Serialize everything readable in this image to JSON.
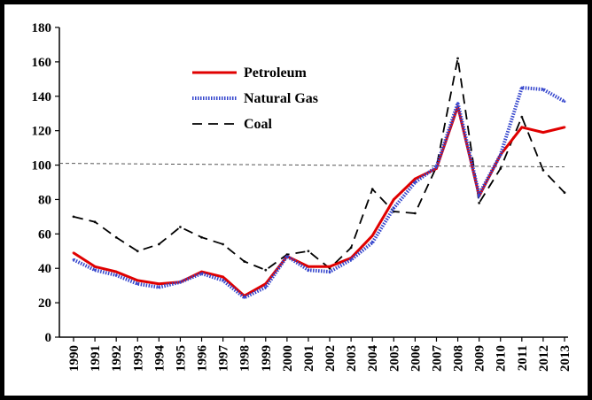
{
  "chart_data": {
    "type": "line",
    "title": "",
    "xlabel": "",
    "ylabel": "",
    "x": [
      "1990",
      "1991",
      "1992",
      "1993",
      "1994",
      "1995",
      "1996",
      "1997",
      "1998",
      "1999",
      "2000",
      "2001",
      "2002",
      "2003",
      "2004",
      "2005",
      "2006",
      "2007",
      "2008",
      "2009",
      "2010",
      "2011",
      "2012",
      "2013"
    ],
    "ylim": [
      0,
      180
    ],
    "yticks": [
      "0",
      "20",
      "40",
      "60",
      "80",
      "100",
      "120",
      "140",
      "160",
      "180"
    ],
    "grid": false,
    "legend_position": "top-left",
    "reference_line": 100,
    "series": [
      {
        "name": "Petroleum",
        "color": "#e00000",
        "style": "solid",
        "values": [
          49,
          41,
          38,
          33,
          31,
          32,
          38,
          35,
          24,
          31,
          47,
          41,
          41,
          46,
          59,
          80,
          92,
          98,
          134,
          82,
          106,
          122,
          119,
          122
        ]
      },
      {
        "name": "Natural Gas",
        "color": "#3344cc",
        "style": "dotted-double",
        "values": [
          45,
          39,
          36,
          31,
          29,
          32,
          37,
          33,
          23,
          29,
          47,
          39,
          38,
          45,
          55,
          75,
          90,
          99,
          136,
          83,
          106,
          145,
          144,
          137
        ]
      },
      {
        "name": "Coal",
        "color": "#000000",
        "style": "dashed",
        "values": [
          70,
          67,
          58,
          50,
          54,
          64,
          58,
          54,
          44,
          39,
          48,
          50,
          40,
          52,
          86,
          73,
          72,
          99,
          162,
          78,
          98,
          128,
          97,
          84
        ]
      }
    ]
  }
}
